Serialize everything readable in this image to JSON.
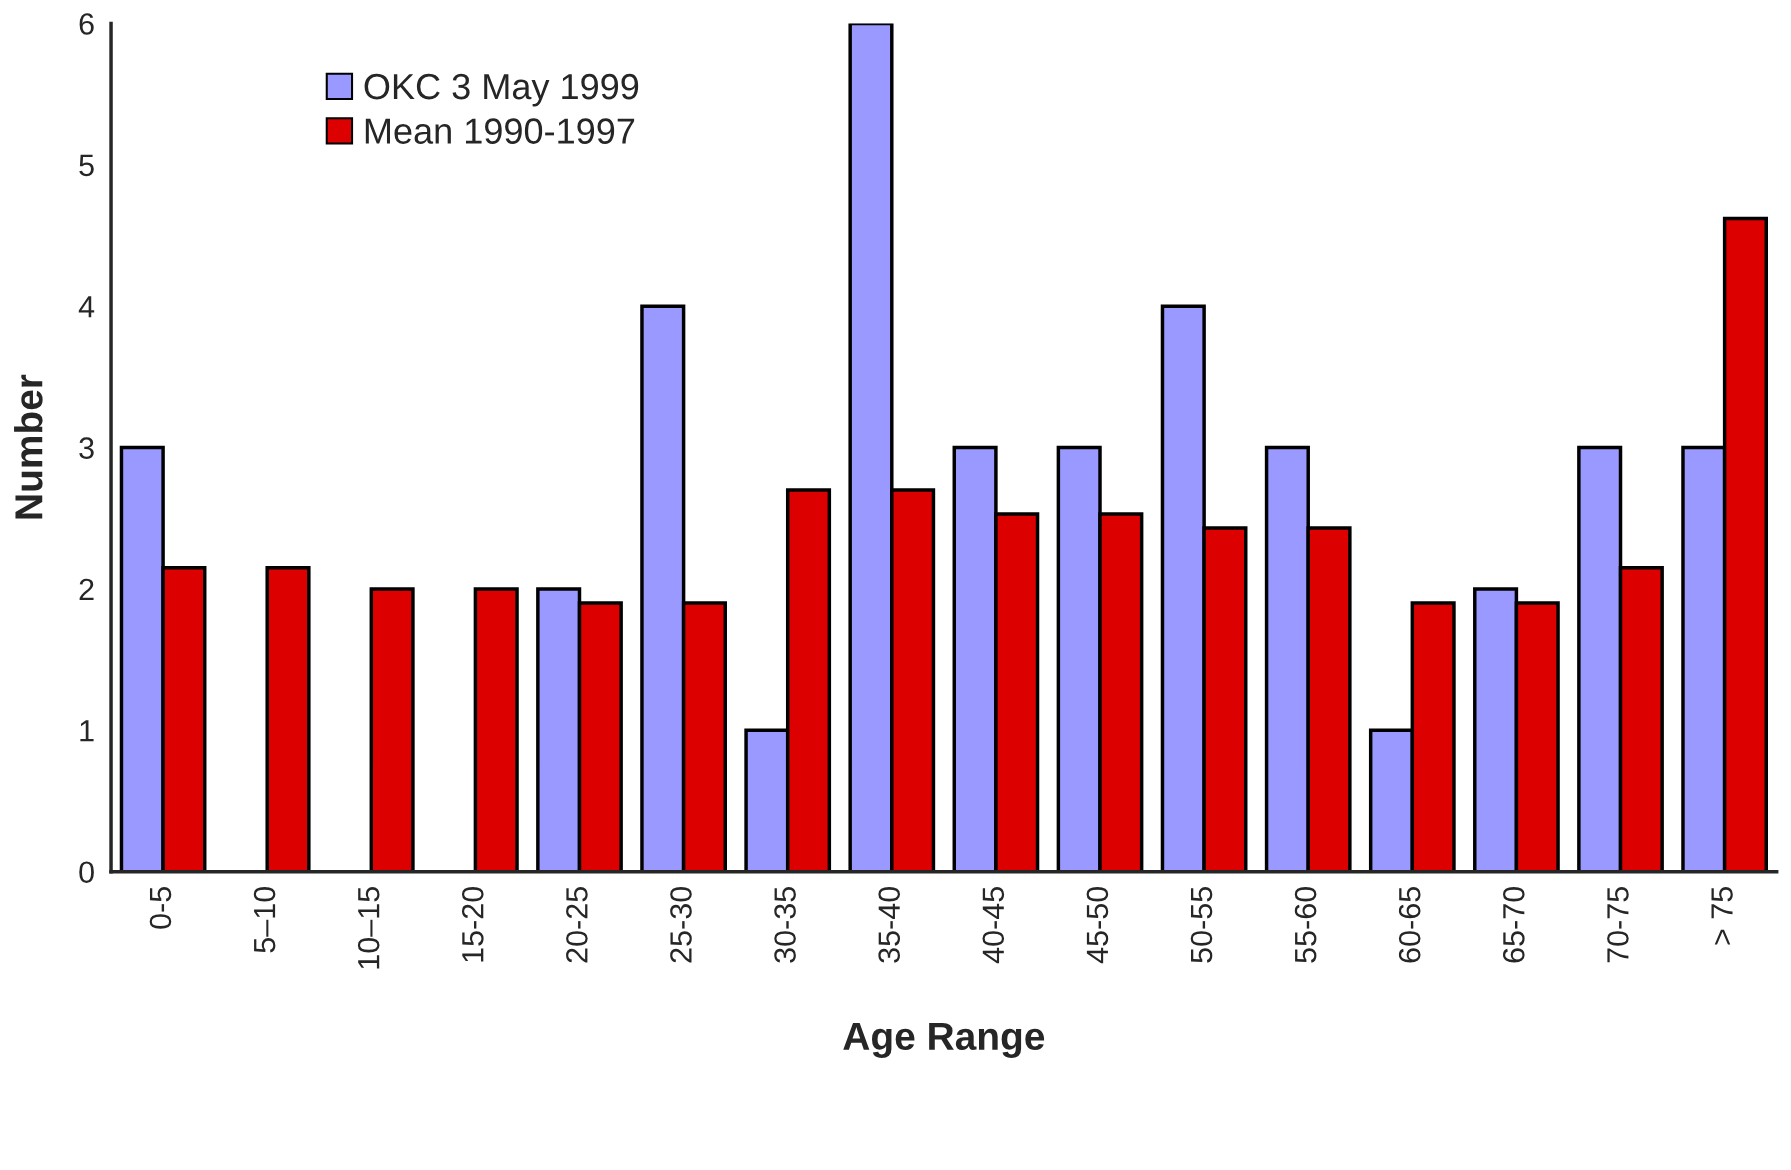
{
  "chart_data": {
    "type": "bar",
    "xlabel": "Age Range",
    "ylabel": "Number",
    "categories": [
      "0-5",
      "5–10",
      "10–15",
      "15-20",
      "20-25",
      "25-30",
      "30-35",
      "35-40",
      "40-45",
      "45-50",
      "50-55",
      "55-60",
      "60-65",
      "65-70",
      "70-75",
      "> 75"
    ],
    "series": [
      {
        "name": "OKC 3 May 1999",
        "color": "#9999ff",
        "values": [
          3,
          null,
          null,
          null,
          2,
          4,
          1,
          6,
          3,
          3,
          4,
          3,
          1,
          2,
          3,
          3
        ]
      },
      {
        "name": "Mean 1990-1997",
        "color": "#dd0000",
        "values": [
          2.15,
          2.15,
          2.0,
          2.0,
          1.9,
          1.9,
          2.7,
          2.7,
          2.53,
          2.53,
          2.43,
          2.43,
          1.9,
          1.9,
          2.15,
          4.62
        ]
      }
    ],
    "ylim": [
      0,
      6
    ],
    "yticks": [
      0,
      1,
      2,
      3,
      4,
      5,
      6
    ],
    "grid": false,
    "legend": "top left"
  }
}
